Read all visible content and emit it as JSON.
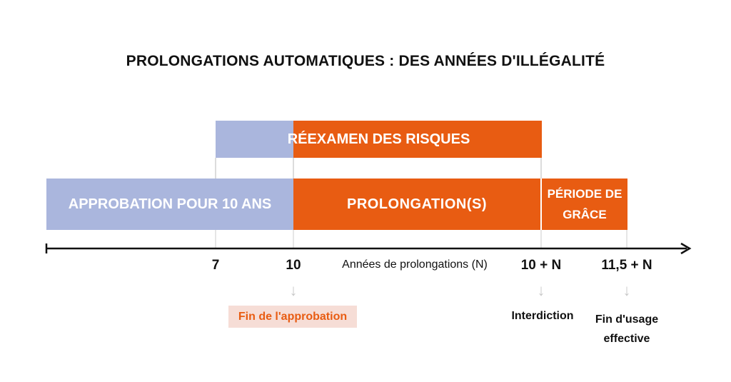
{
  "title": "PROLONGATIONS AUTOMATIQUES : DES ANNÉES D'ILLÉGALITÉ",
  "bars": {
    "reexamen": "RÉEXAMEN DES RISQUES",
    "approbation": "APPROBATION POUR 10 ANS",
    "prolongation": "PROLONGATION(S)",
    "grace_line1": "PÉRIODE DE",
    "grace_line2": "GRÂCE"
  },
  "axis": {
    "ticks": [
      "7",
      "10",
      "10 + N",
      "11,5 + N"
    ],
    "label": "Années de prolongations (N)"
  },
  "milestones": {
    "fin_approbation": "Fin de l'approbation",
    "interdiction": "Interdiction",
    "fin_usage_line1": "Fin d'usage",
    "fin_usage_line2": "effective"
  },
  "colors": {
    "blue": "#aab6dd",
    "orange": "#e85c12",
    "highlight_bg": "#f6ddd6"
  }
}
